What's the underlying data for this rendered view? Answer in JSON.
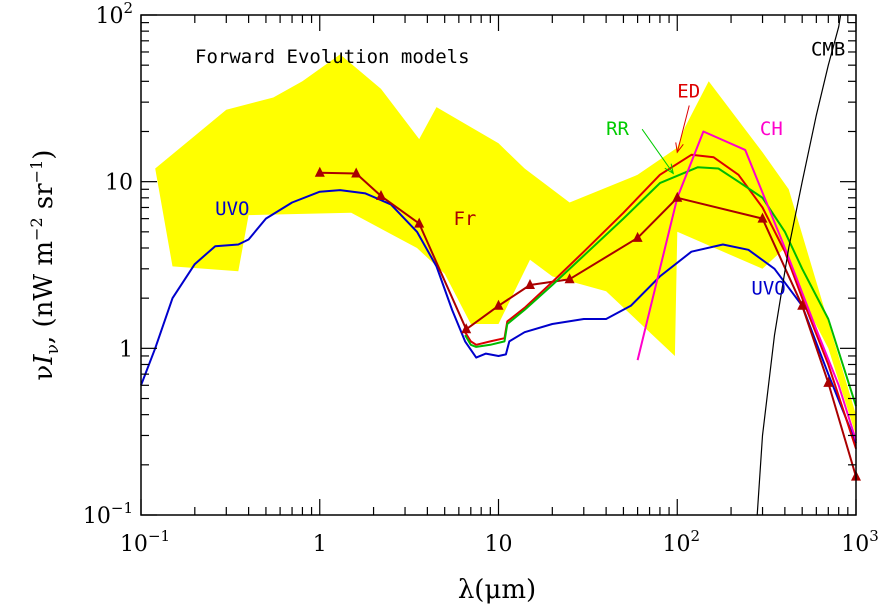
{
  "chart_data": {
    "type": "line",
    "title": "Forward Evolution models",
    "xlabel": "λ(μm)",
    "ylabel": "νI_ν (nW m^-2 sr^-1)",
    "x_scale": "log",
    "y_scale": "log",
    "xlim": [
      0.1,
      1000
    ],
    "ylim": [
      0.1,
      100
    ],
    "grid": false,
    "x_ticks": [
      {
        "value": 0.1,
        "base": "10",
        "exp": "-1"
      },
      {
        "value": 1,
        "base": "1",
        "exp": ""
      },
      {
        "value": 10,
        "base": "10",
        "exp": ""
      },
      {
        "value": 100,
        "base": "10",
        "exp": "2"
      },
      {
        "value": 1000,
        "base": "10",
        "exp": "3"
      }
    ],
    "y_ticks": [
      {
        "value": 0.1,
        "base": "10",
        "exp": "-1"
      },
      {
        "value": 1,
        "base": "1",
        "exp": ""
      },
      {
        "value": 10,
        "base": "10",
        "exp": ""
      },
      {
        "value": 100,
        "base": "10",
        "exp": "2"
      }
    ],
    "uncertainty_band": {
      "color": "#ffff00",
      "upper": [
        [
          0.12,
          12
        ],
        [
          0.3,
          27
        ],
        [
          0.55,
          32
        ],
        [
          0.8,
          40
        ],
        [
          1.3,
          58
        ],
        [
          2.2,
          36
        ],
        [
          3.6,
          18
        ],
        [
          4.5,
          28
        ],
        [
          10,
          17
        ],
        [
          14,
          12
        ],
        [
          25,
          7.5
        ],
        [
          60,
          11
        ],
        [
          100,
          16
        ],
        [
          110,
          21
        ],
        [
          150,
          40
        ],
        [
          300,
          15
        ],
        [
          420,
          9
        ]
      ],
      "lower": [
        [
          1000,
          0.4
        ],
        [
          1000,
          0.3
        ],
        [
          700,
          1
        ],
        [
          500,
          2
        ],
        [
          400,
          4
        ],
        [
          300,
          3
        ],
        [
          100,
          5
        ],
        [
          97,
          0.9
        ],
        [
          40,
          2.2
        ],
        [
          20,
          2.7
        ],
        [
          15,
          3.4
        ],
        [
          10,
          1.4
        ],
        [
          7,
          1.4
        ],
        [
          5,
          2.8
        ],
        [
          3.5,
          4
        ],
        [
          1.5,
          6.5
        ],
        [
          0.4,
          6.3
        ],
        [
          0.35,
          2.9
        ],
        [
          0.15,
          3.1
        ]
      ]
    },
    "series": [
      {
        "name": "UVO",
        "color": "#0000cc",
        "points": [
          [
            0.1,
            0.6
          ],
          [
            0.12,
            1
          ],
          [
            0.15,
            2
          ],
          [
            0.2,
            3.2
          ],
          [
            0.26,
            4.1
          ],
          [
            0.35,
            4.2
          ],
          [
            0.4,
            4.5
          ],
          [
            0.5,
            6
          ],
          [
            0.7,
            7.5
          ],
          [
            1,
            8.7
          ],
          [
            1.3,
            8.9
          ],
          [
            1.8,
            8.5
          ],
          [
            2.5,
            7.3
          ],
          [
            3.5,
            5
          ],
          [
            4.5,
            3.1
          ],
          [
            5.5,
            1.7
          ],
          [
            6.5,
            1.1
          ],
          [
            7.5,
            0.88
          ],
          [
            8.5,
            0.93
          ],
          [
            10,
            0.9
          ],
          [
            11,
            0.92
          ],
          [
            11.5,
            1.1
          ],
          [
            14,
            1.25
          ],
          [
            20,
            1.4
          ],
          [
            30,
            1.5
          ],
          [
            40,
            1.5
          ],
          [
            55,
            1.8
          ],
          [
            80,
            2.7
          ],
          [
            120,
            3.8
          ],
          [
            180,
            4.2
          ],
          [
            250,
            3.9
          ],
          [
            350,
            3
          ],
          [
            500,
            1.8
          ],
          [
            700,
            0.7
          ],
          [
            1000,
            0.27
          ]
        ]
      },
      {
        "name": "Fr",
        "color": "#aa0000",
        "marker": "triangle",
        "points": [
          [
            1,
            11.3
          ],
          [
            1.6,
            11.2
          ],
          [
            2.2,
            8.2
          ],
          [
            3.6,
            5.6
          ],
          [
            6.6,
            1.3
          ],
          [
            10,
            1.8
          ],
          [
            15,
            2.4
          ],
          [
            25,
            2.6
          ],
          [
            60,
            4.6
          ],
          [
            100,
            8
          ],
          [
            300,
            6
          ],
          [
            500,
            1.8
          ],
          [
            700,
            0.62
          ],
          [
            1000,
            0.17
          ]
        ]
      },
      {
        "name": "",
        "color": "#dd0000",
        "points": [
          [
            6.5,
            1.25
          ],
          [
            7,
            1.1
          ],
          [
            7.5,
            1.05
          ],
          [
            9,
            1.1
          ],
          [
            10.8,
            1.15
          ],
          [
            11.2,
            1.45
          ],
          [
            14,
            1.75
          ],
          [
            20,
            2.5
          ],
          [
            30,
            3.8
          ],
          [
            50,
            6.5
          ],
          [
            80,
            11
          ],
          [
            120,
            14.5
          ],
          [
            160,
            14
          ],
          [
            220,
            11
          ],
          [
            300,
            7
          ],
          [
            400,
            3.8
          ],
          [
            500,
            2
          ],
          [
            700,
            0.8
          ],
          [
            1000,
            0.25
          ]
        ]
      },
      {
        "name": "",
        "color": "#00bb00",
        "points": [
          [
            6.5,
            1.2
          ],
          [
            7,
            1.05
          ],
          [
            7.5,
            1.02
          ],
          [
            9,
            1.05
          ],
          [
            10.8,
            1.1
          ],
          [
            11.2,
            1.4
          ],
          [
            14,
            1.7
          ],
          [
            20,
            2.4
          ],
          [
            30,
            3.6
          ],
          [
            50,
            6
          ],
          [
            80,
            9.8
          ],
          [
            130,
            12.2
          ],
          [
            170,
            12
          ],
          [
            220,
            10
          ],
          [
            300,
            8
          ],
          [
            400,
            5
          ],
          [
            500,
            3
          ],
          [
            700,
            1.5
          ],
          [
            1000,
            0.45
          ]
        ]
      },
      {
        "name": "CH",
        "color": "#ff00cc",
        "points": [
          [
            60,
            0.85
          ],
          [
            80,
            3
          ],
          [
            100,
            8
          ],
          [
            140,
            20
          ],
          [
            240,
            15.5
          ],
          [
            400,
            4
          ],
          [
            600,
            1.3
          ],
          [
            800,
            0.6
          ],
          [
            1000,
            0.28
          ]
        ]
      },
      {
        "name": "CMB",
        "color": "#000000",
        "points": [
          [
            280,
            0.1
          ],
          [
            300,
            0.3
          ],
          [
            350,
            1.2
          ],
          [
            420,
            4
          ],
          [
            500,
            10
          ],
          [
            600,
            25
          ],
          [
            700,
            50
          ],
          [
            800,
            85
          ],
          [
            820,
            100
          ]
        ]
      }
    ],
    "annotations": [
      {
        "text": "UVO",
        "color": "#0000cc",
        "x": 0.26,
        "y": 6.3
      },
      {
        "text": "Fr",
        "color": "#aa0000",
        "x": 5.6,
        "y": 5.5
      },
      {
        "text": "RR",
        "color": "#00cc00",
        "x": 40,
        "y": 19,
        "arrow_to": [
          95,
          11.2
        ]
      },
      {
        "text": "ED",
        "color": "#dd0000",
        "x": 100,
        "y": 32,
        "arrow_to": [
          100,
          15
        ]
      },
      {
        "text": "CH",
        "color": "#ff00cc",
        "x": 290,
        "y": 19
      },
      {
        "text": "UVO",
        "color": "#0000cc",
        "x": 260,
        "y": 2.1
      },
      {
        "text": "CMB",
        "color": "#000000",
        "x": 560,
        "y": 57
      }
    ]
  }
}
